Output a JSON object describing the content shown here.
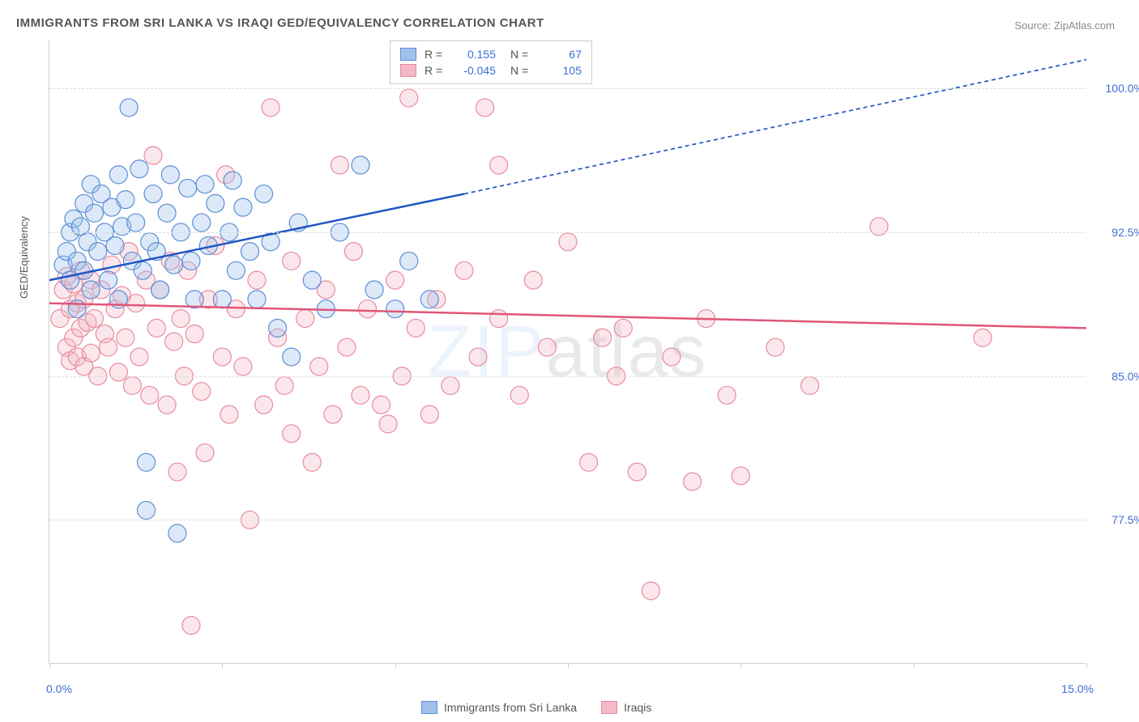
{
  "title": "IMMIGRANTS FROM SRI LANKA VS IRAQI GED/EQUIVALENCY CORRELATION CHART",
  "source_label": "Source: ",
  "source_name": "ZipAtlas.com",
  "ylabel": "GED/Equivalency",
  "watermark_a": "ZIP",
  "watermark_b": "atlas",
  "chart": {
    "type": "scatter",
    "xlim": [
      0.0,
      15.0
    ],
    "ylim": [
      70.0,
      102.5
    ],
    "x_ticks": [
      0.0,
      2.5,
      5.0,
      7.5,
      10.0,
      12.5,
      15.0
    ],
    "x_tick_labels_shown": {
      "0": "0.0%",
      "15": "15.0%"
    },
    "y_ticks": [
      77.5,
      85.0,
      92.5,
      100.0
    ],
    "y_tick_labels": [
      "77.5%",
      "85.0%",
      "92.5%",
      "100.0%"
    ],
    "grid_color": "#dddddd",
    "axis_color": "#cccccc",
    "background_color": "#ffffff",
    "marker_radius": 11,
    "marker_stroke_width": 1.2,
    "marker_fill_opacity": 0.35,
    "trend_line_width": 2.5,
    "trend_dash": "5,4"
  },
  "series": [
    {
      "key": "sri_lanka",
      "label": "Immigrants from Sri Lanka",
      "R": "0.155",
      "N": "67",
      "color_stroke": "#5b8fd6",
      "color_fill": "#9fc1ea",
      "trend_color": "#1f55c4",
      "trend_start": {
        "x": 0.0,
        "y": 90.0
      },
      "trend_solid_end": {
        "x": 6.0,
        "y": 94.5
      },
      "trend_end": {
        "x": 15.0,
        "y": 101.5
      },
      "points": [
        {
          "x": 0.2,
          "y": 90.8
        },
        {
          "x": 0.25,
          "y": 91.5
        },
        {
          "x": 0.3,
          "y": 92.5
        },
        {
          "x": 0.3,
          "y": 90.0
        },
        {
          "x": 0.35,
          "y": 93.2
        },
        {
          "x": 0.4,
          "y": 91.0
        },
        {
          "x": 0.4,
          "y": 88.5
        },
        {
          "x": 0.45,
          "y": 92.8
        },
        {
          "x": 0.5,
          "y": 94.0
        },
        {
          "x": 0.5,
          "y": 90.5
        },
        {
          "x": 0.55,
          "y": 92.0
        },
        {
          "x": 0.6,
          "y": 95.0
        },
        {
          "x": 0.6,
          "y": 89.5
        },
        {
          "x": 0.65,
          "y": 93.5
        },
        {
          "x": 0.7,
          "y": 91.5
        },
        {
          "x": 0.75,
          "y": 94.5
        },
        {
          "x": 0.8,
          "y": 92.5
        },
        {
          "x": 0.85,
          "y": 90.0
        },
        {
          "x": 0.9,
          "y": 93.8
        },
        {
          "x": 0.95,
          "y": 91.8
        },
        {
          "x": 1.0,
          "y": 95.5
        },
        {
          "x": 1.0,
          "y": 89.0
        },
        {
          "x": 1.05,
          "y": 92.8
        },
        {
          "x": 1.1,
          "y": 94.2
        },
        {
          "x": 1.15,
          "y": 99.0
        },
        {
          "x": 1.2,
          "y": 91.0
        },
        {
          "x": 1.25,
          "y": 93.0
        },
        {
          "x": 1.3,
          "y": 95.8
        },
        {
          "x": 1.35,
          "y": 90.5
        },
        {
          "x": 1.4,
          "y": 78.0
        },
        {
          "x": 1.4,
          "y": 80.5
        },
        {
          "x": 1.45,
          "y": 92.0
        },
        {
          "x": 1.5,
          "y": 94.5
        },
        {
          "x": 1.55,
          "y": 91.5
        },
        {
          "x": 1.6,
          "y": 89.5
        },
        {
          "x": 1.7,
          "y": 93.5
        },
        {
          "x": 1.75,
          "y": 95.5
        },
        {
          "x": 1.8,
          "y": 90.8
        },
        {
          "x": 1.85,
          "y": 76.8
        },
        {
          "x": 1.9,
          "y": 92.5
        },
        {
          "x": 2.0,
          "y": 94.8
        },
        {
          "x": 2.05,
          "y": 91.0
        },
        {
          "x": 2.1,
          "y": 89.0
        },
        {
          "x": 2.2,
          "y": 93.0
        },
        {
          "x": 2.25,
          "y": 95.0
        },
        {
          "x": 2.3,
          "y": 91.8
        },
        {
          "x": 2.4,
          "y": 94.0
        },
        {
          "x": 2.5,
          "y": 89.0
        },
        {
          "x": 2.6,
          "y": 92.5
        },
        {
          "x": 2.65,
          "y": 95.2
        },
        {
          "x": 2.7,
          "y": 90.5
        },
        {
          "x": 2.8,
          "y": 93.8
        },
        {
          "x": 2.9,
          "y": 91.5
        },
        {
          "x": 3.0,
          "y": 89.0
        },
        {
          "x": 3.1,
          "y": 94.5
        },
        {
          "x": 3.2,
          "y": 92.0
        },
        {
          "x": 3.3,
          "y": 87.5
        },
        {
          "x": 3.5,
          "y": 86.0
        },
        {
          "x": 3.6,
          "y": 93.0
        },
        {
          "x": 3.8,
          "y": 90.0
        },
        {
          "x": 4.0,
          "y": 88.5
        },
        {
          "x": 4.2,
          "y": 92.5
        },
        {
          "x": 4.5,
          "y": 96.0
        },
        {
          "x": 4.7,
          "y": 89.5
        },
        {
          "x": 5.0,
          "y": 88.5
        },
        {
          "x": 5.2,
          "y": 91.0
        },
        {
          "x": 5.5,
          "y": 89.0
        }
      ]
    },
    {
      "key": "iraqi",
      "label": "Iraqis",
      "R": "-0.045",
      "N": "105",
      "color_stroke": "#e88ba0",
      "color_fill": "#f3b9c6",
      "trend_color": "#e05578",
      "trend_start": {
        "x": 0.0,
        "y": 88.8
      },
      "trend_solid_end": {
        "x": 15.0,
        "y": 87.5
      },
      "trend_end": {
        "x": 15.0,
        "y": 87.5
      },
      "points": [
        {
          "x": 0.15,
          "y": 88.0
        },
        {
          "x": 0.2,
          "y": 89.5
        },
        {
          "x": 0.25,
          "y": 86.5
        },
        {
          "x": 0.25,
          "y": 90.2
        },
        {
          "x": 0.3,
          "y": 88.5
        },
        {
          "x": 0.3,
          "y": 85.8
        },
        {
          "x": 0.35,
          "y": 87.0
        },
        {
          "x": 0.35,
          "y": 89.8
        },
        {
          "x": 0.4,
          "y": 86.0
        },
        {
          "x": 0.4,
          "y": 88.8
        },
        {
          "x": 0.45,
          "y": 87.5
        },
        {
          "x": 0.45,
          "y": 90.5
        },
        {
          "x": 0.5,
          "y": 85.5
        },
        {
          "x": 0.5,
          "y": 89.0
        },
        {
          "x": 0.55,
          "y": 87.8
        },
        {
          "x": 0.6,
          "y": 86.2
        },
        {
          "x": 0.6,
          "y": 90.0
        },
        {
          "x": 0.65,
          "y": 88.0
        },
        {
          "x": 0.7,
          "y": 85.0
        },
        {
          "x": 0.75,
          "y": 89.5
        },
        {
          "x": 0.8,
          "y": 87.2
        },
        {
          "x": 0.85,
          "y": 86.5
        },
        {
          "x": 0.9,
          "y": 90.8
        },
        {
          "x": 0.95,
          "y": 88.5
        },
        {
          "x": 1.0,
          "y": 85.2
        },
        {
          "x": 1.05,
          "y": 89.2
        },
        {
          "x": 1.1,
          "y": 87.0
        },
        {
          "x": 1.15,
          "y": 91.5
        },
        {
          "x": 1.2,
          "y": 84.5
        },
        {
          "x": 1.25,
          "y": 88.8
        },
        {
          "x": 1.3,
          "y": 86.0
        },
        {
          "x": 1.4,
          "y": 90.0
        },
        {
          "x": 1.45,
          "y": 84.0
        },
        {
          "x": 1.5,
          "y": 96.5
        },
        {
          "x": 1.55,
          "y": 87.5
        },
        {
          "x": 1.6,
          "y": 89.5
        },
        {
          "x": 1.7,
          "y": 83.5
        },
        {
          "x": 1.75,
          "y": 91.0
        },
        {
          "x": 1.8,
          "y": 86.8
        },
        {
          "x": 1.85,
          "y": 80.0
        },
        {
          "x": 1.9,
          "y": 88.0
        },
        {
          "x": 1.95,
          "y": 85.0
        },
        {
          "x": 2.0,
          "y": 90.5
        },
        {
          "x": 2.05,
          "y": 72.0
        },
        {
          "x": 2.1,
          "y": 87.2
        },
        {
          "x": 2.2,
          "y": 84.2
        },
        {
          "x": 2.25,
          "y": 81.0
        },
        {
          "x": 2.3,
          "y": 89.0
        },
        {
          "x": 2.4,
          "y": 91.8
        },
        {
          "x": 2.5,
          "y": 86.0
        },
        {
          "x": 2.55,
          "y": 95.5
        },
        {
          "x": 2.6,
          "y": 83.0
        },
        {
          "x": 2.7,
          "y": 88.5
        },
        {
          "x": 2.8,
          "y": 85.5
        },
        {
          "x": 2.9,
          "y": 77.5
        },
        {
          "x": 3.0,
          "y": 90.0
        },
        {
          "x": 3.1,
          "y": 83.5
        },
        {
          "x": 3.2,
          "y": 99.0
        },
        {
          "x": 3.3,
          "y": 87.0
        },
        {
          "x": 3.4,
          "y": 84.5
        },
        {
          "x": 3.5,
          "y": 91.0
        },
        {
          "x": 3.5,
          "y": 82.0
        },
        {
          "x": 3.7,
          "y": 88.0
        },
        {
          "x": 3.8,
          "y": 80.5
        },
        {
          "x": 3.9,
          "y": 85.5
        },
        {
          "x": 4.0,
          "y": 89.5
        },
        {
          "x": 4.1,
          "y": 83.0
        },
        {
          "x": 4.2,
          "y": 96.0
        },
        {
          "x": 4.3,
          "y": 86.5
        },
        {
          "x": 4.4,
          "y": 91.5
        },
        {
          "x": 4.5,
          "y": 84.0
        },
        {
          "x": 4.6,
          "y": 88.5
        },
        {
          "x": 4.8,
          "y": 83.5
        },
        {
          "x": 4.9,
          "y": 82.5
        },
        {
          "x": 5.0,
          "y": 90.0
        },
        {
          "x": 5.1,
          "y": 85.0
        },
        {
          "x": 5.2,
          "y": 99.5
        },
        {
          "x": 5.3,
          "y": 87.5
        },
        {
          "x": 5.5,
          "y": 83.0
        },
        {
          "x": 5.6,
          "y": 89.0
        },
        {
          "x": 5.8,
          "y": 84.5
        },
        {
          "x": 6.0,
          "y": 90.5
        },
        {
          "x": 6.2,
          "y": 86.0
        },
        {
          "x": 6.3,
          "y": 99.0
        },
        {
          "x": 6.5,
          "y": 88.0
        },
        {
          "x": 6.5,
          "y": 96.0
        },
        {
          "x": 6.8,
          "y": 84.0
        },
        {
          "x": 7.0,
          "y": 90.0
        },
        {
          "x": 7.2,
          "y": 86.5
        },
        {
          "x": 7.5,
          "y": 92.0
        },
        {
          "x": 7.8,
          "y": 80.5
        },
        {
          "x": 8.0,
          "y": 87.0
        },
        {
          "x": 8.2,
          "y": 85.0
        },
        {
          "x": 8.3,
          "y": 87.5
        },
        {
          "x": 8.5,
          "y": 80.0
        },
        {
          "x": 8.7,
          "y": 73.8
        },
        {
          "x": 9.0,
          "y": 86.0
        },
        {
          "x": 9.3,
          "y": 79.5
        },
        {
          "x": 9.5,
          "y": 88.0
        },
        {
          "x": 9.8,
          "y": 84.0
        },
        {
          "x": 10.0,
          "y": 79.8
        },
        {
          "x": 10.5,
          "y": 86.5
        },
        {
          "x": 11.0,
          "y": 84.5
        },
        {
          "x": 12.0,
          "y": 92.8
        },
        {
          "x": 13.5,
          "y": 87.0
        }
      ]
    }
  ],
  "legend_top": {
    "r_label": "R =",
    "n_label": "N ="
  }
}
